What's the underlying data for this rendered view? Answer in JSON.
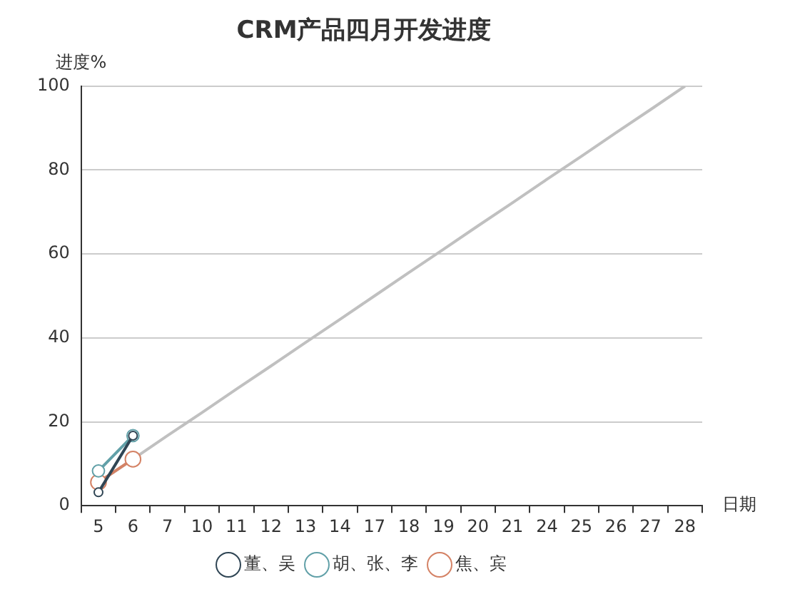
{
  "chart_data": {
    "type": "line",
    "title": "CRM产品四月开发进度",
    "xlabel": "日期",
    "ylabel": "进度%",
    "categories": [
      "5",
      "6",
      "7",
      "10",
      "11",
      "12",
      "13",
      "14",
      "17",
      "18",
      "19",
      "20",
      "21",
      "24",
      "25",
      "26",
      "27",
      "28"
    ],
    "series": [
      {
        "name": "董、吴",
        "color": "#2f4554",
        "values": [
          3.2,
          16.7,
          null,
          null,
          null,
          null,
          null,
          null,
          null,
          null,
          null,
          null,
          null,
          null,
          null,
          null,
          null,
          null
        ]
      },
      {
        "name": "胡、张、李",
        "color": "#61a0a8",
        "values": [
          8.3,
          16.7,
          null,
          null,
          null,
          null,
          null,
          null,
          null,
          null,
          null,
          null,
          null,
          null,
          null,
          null,
          null,
          null
        ]
      },
      {
        "name": "焦、宾",
        "color": "#d48265",
        "values": [
          5.6,
          11.1,
          null,
          null,
          null,
          null,
          null,
          null,
          null,
          null,
          null,
          null,
          null,
          null,
          null,
          null,
          null,
          null
        ]
      },
      {
        "color": "#c0c0c0",
        "marker": "none",
        "values": [
          5.6,
          11.1,
          16.7,
          22.2,
          27.8,
          33.3,
          38.9,
          44.4,
          50,
          55.6,
          61.1,
          66.7,
          72.2,
          77.8,
          83.3,
          88.9,
          94.4,
          100
        ]
      }
    ],
    "ylim": [
      0,
      100
    ],
    "yticks": [
      0,
      20,
      40,
      60,
      80,
      100
    ],
    "grid": "y",
    "legend": "bottom",
    "marker": "circle",
    "line_style": "solid"
  }
}
